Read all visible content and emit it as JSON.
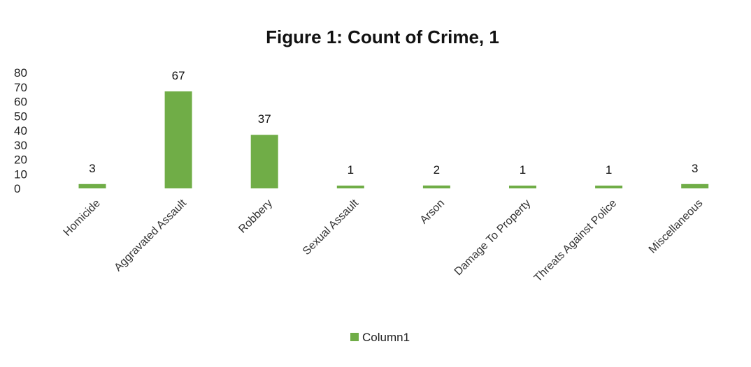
{
  "chart_data": {
    "type": "bar",
    "title": "Figure 1: Count of Crime, 1",
    "xlabel": "",
    "ylabel": "",
    "categories": [
      "Homicide",
      "Aggravated Assault",
      "Robbery",
      "Sexual Assault",
      "Arson",
      "Damage To Property",
      "Threats Against Police",
      "Miscellaneous"
    ],
    "series": [
      {
        "name": "Column1",
        "values": [
          3,
          67,
          37,
          1,
          2,
          1,
          1,
          3
        ],
        "color": "#70ad47"
      }
    ],
    "ylim": [
      0,
      80
    ],
    "yticks": [
      0,
      10,
      20,
      30,
      40,
      50,
      60,
      70,
      80
    ],
    "grid": false,
    "legend": "bottom",
    "data_labels": true
  }
}
